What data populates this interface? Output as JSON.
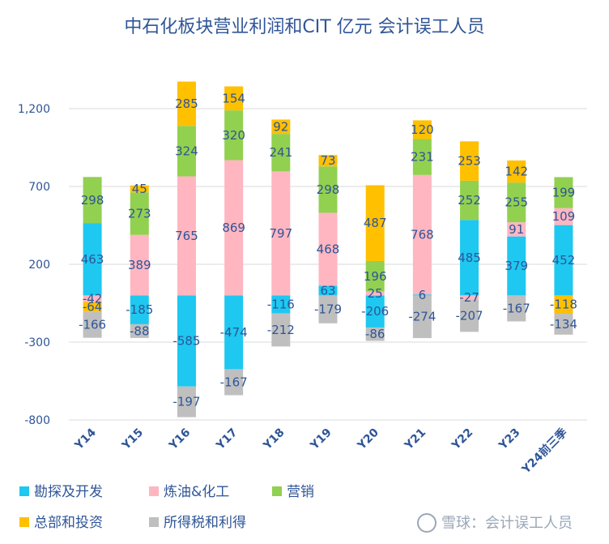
{
  "chart_data": {
    "type": "bar",
    "stacked": true,
    "title": "中石化板块营业利润和CIT  亿元 会计误工人员",
    "categories": [
      "Y14",
      "Y15",
      "Y16",
      "Y17",
      "Y18",
      "Y19",
      "Y20",
      "Y21",
      "Y22",
      "Y23",
      "Y24前三季"
    ],
    "yticks": [
      "1,200",
      "700",
      "200",
      "-300",
      "-800"
    ],
    "ytick_values": [
      1200,
      700,
      200,
      -300,
      -800
    ],
    "ylim": [
      -800,
      1400
    ],
    "grid": true,
    "legend_position": "bottom",
    "series": [
      {
        "name": "勘探及开发",
        "color": "#1ec8f0",
        "values": [
          463,
          -185,
          -585,
          -474,
          -116,
          63,
          -206,
          6,
          485,
          379,
          452
        ]
      },
      {
        "name": "炼油&化工",
        "color": "#ffb6c1",
        "values": [
          -42,
          389,
          765,
          869,
          797,
          468,
          25,
          768,
          -27,
          91,
          109
        ]
      },
      {
        "name": "营销",
        "color": "#92d050",
        "values": [
          298,
          273,
          324,
          320,
          241,
          298,
          196,
          231,
          252,
          255,
          199
        ]
      },
      {
        "name": "总部和投资",
        "color": "#ffc000",
        "values": [
          -64,
          45,
          285,
          154,
          92,
          73,
          487,
          120,
          253,
          142,
          -118
        ]
      },
      {
        "name": "所得税和利得",
        "color": "#bfbfbf",
        "values": [
          -166,
          -88,
          -197,
          -167,
          -212,
          -179,
          -86,
          -274,
          -207,
          -167,
          -134
        ]
      }
    ]
  },
  "watermark": "雪球：会计误工人员"
}
